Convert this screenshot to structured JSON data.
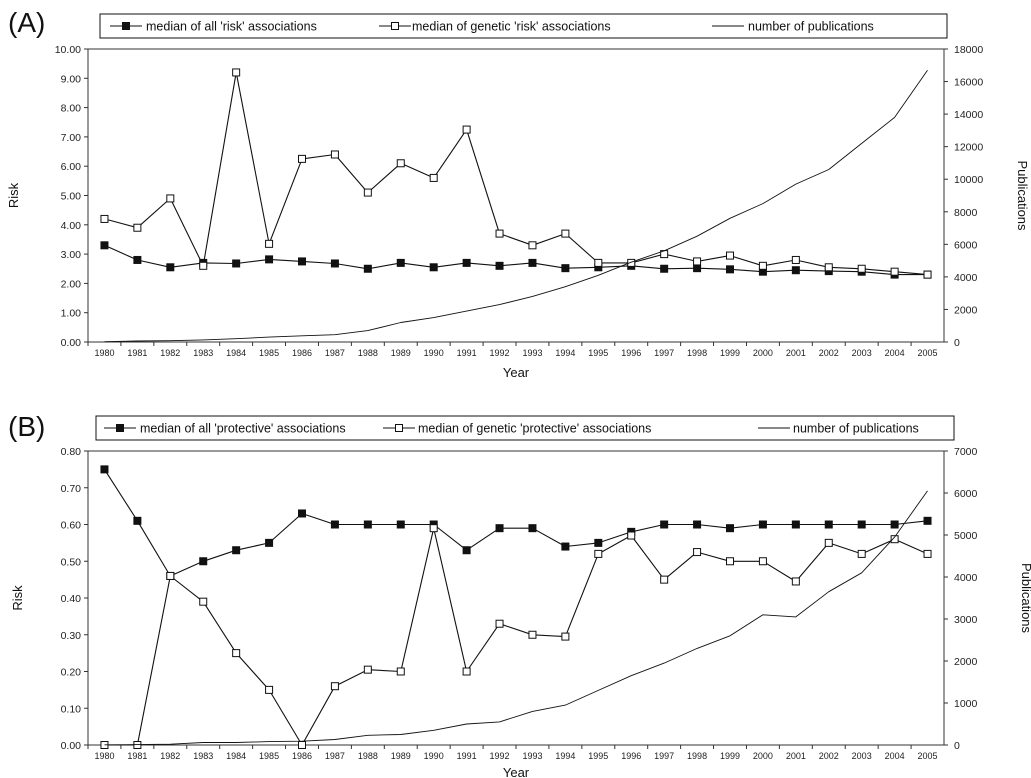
{
  "chart_data": [
    {
      "panel": "(A)",
      "type": "line",
      "xlabel": "Year",
      "ylabel": "Risk",
      "y2label": "Publications",
      "ylim": [
        0,
        10
      ],
      "y2lim": [
        0,
        18000
      ],
      "yticks": [
        "0.00",
        "1.00",
        "2.00",
        "3.00",
        "4.00",
        "5.00",
        "6.00",
        "7.00",
        "8.00",
        "9.00",
        "10.00"
      ],
      "y2ticks": [
        "0",
        "2000",
        "4000",
        "6000",
        "8000",
        "10000",
        "12000",
        "14000",
        "16000",
        "18000"
      ],
      "legend_position": "top",
      "x": [
        "1980",
        "1981",
        "1982",
        "1983",
        "1984",
        "1985",
        "1986",
        "1987",
        "1988",
        "1989",
        "1990",
        "1991",
        "1992",
        "1993",
        "1994",
        "1995",
        "1996",
        "1997",
        "1998",
        "1999",
        "2000",
        "2001",
        "2002",
        "2003",
        "2004",
        "2005"
      ],
      "series": [
        {
          "name": "median of all 'risk' associations",
          "marker": "filled-square",
          "axis": "left",
          "values": [
            3.3,
            2.8,
            2.55,
            2.7,
            2.68,
            2.82,
            2.75,
            2.68,
            2.5,
            2.7,
            2.55,
            2.7,
            2.6,
            2.7,
            2.52,
            2.55,
            2.6,
            2.5,
            2.52,
            2.48,
            2.4,
            2.45,
            2.42,
            2.4,
            2.3,
            2.3
          ]
        },
        {
          "name": "median of genetic 'risk' associations",
          "marker": "open-square",
          "axis": "left",
          "values": [
            4.2,
            3.9,
            4.9,
            2.6,
            9.2,
            3.35,
            6.25,
            6.4,
            5.1,
            6.1,
            5.6,
            7.25,
            3.7,
            3.3,
            3.7,
            2.7,
            2.7,
            3.0,
            2.75,
            2.95,
            2.6,
            2.8,
            2.55,
            2.5,
            2.4,
            2.3
          ]
        },
        {
          "name": "number of publications",
          "marker": "none",
          "axis": "right",
          "values": [
            20,
            60,
            80,
            130,
            200,
            300,
            380,
            450,
            700,
            1200,
            1500,
            1900,
            2300,
            2800,
            3400,
            4100,
            4900,
            5600,
            6500,
            7600,
            8500,
            9700,
            10600,
            12200,
            13800,
            16700
          ]
        }
      ]
    },
    {
      "panel": "(B)",
      "type": "line",
      "xlabel": "Year",
      "ylabel": "Risk",
      "y2label": "Publications",
      "ylim": [
        0,
        0.8
      ],
      "y2lim": [
        0,
        7000
      ],
      "yticks": [
        "0.00",
        "0.10",
        "0.20",
        "0.30",
        "0.40",
        "0.50",
        "0.60",
        "0.70",
        "0.80"
      ],
      "y2ticks": [
        "0",
        "1000",
        "2000",
        "3000",
        "4000",
        "5000",
        "6000",
        "7000"
      ],
      "legend_position": "top",
      "x": [
        "1980",
        "1981",
        "1982",
        "1983",
        "1984",
        "1985",
        "1986",
        "1987",
        "1988",
        "1989",
        "1990",
        "1991",
        "1992",
        "1993",
        "1994",
        "1995",
        "1996",
        "1997",
        "1998",
        "1999",
        "2000",
        "2001",
        "2002",
        "2003",
        "2004",
        "2005"
      ],
      "series": [
        {
          "name": "median of all 'protective' associations",
          "marker": "filled-square",
          "axis": "left",
          "values": [
            0.75,
            0.61,
            0.46,
            0.5,
            0.53,
            0.55,
            0.63,
            0.6,
            0.6,
            0.6,
            0.6,
            0.53,
            0.59,
            0.59,
            0.54,
            0.55,
            0.58,
            0.6,
            0.6,
            0.59,
            0.6,
            0.6,
            0.6,
            0.6,
            0.6,
            0.61
          ]
        },
        {
          "name": "median of genetic 'protective' associations",
          "marker": "open-square",
          "axis": "left",
          "values": [
            0.0,
            0.0,
            0.46,
            0.39,
            0.25,
            0.15,
            0.0,
            0.16,
            0.205,
            0.2,
            0.59,
            0.2,
            0.33,
            0.3,
            0.295,
            0.52,
            0.57,
            0.45,
            0.525,
            0.5,
            0.5,
            0.445,
            0.55,
            0.52,
            0.56,
            0.52
          ]
        },
        {
          "name": "number of publications",
          "marker": "none",
          "axis": "right",
          "values": [
            5,
            10,
            20,
            60,
            60,
            80,
            90,
            130,
            230,
            250,
            350,
            500,
            550,
            800,
            950,
            1300,
            1650,
            1950,
            2300,
            2600,
            3100,
            3050,
            3650,
            4100,
            4950,
            6050
          ]
        }
      ]
    }
  ],
  "colors": {
    "line": "#111111",
    "axis": "#333333",
    "background": "#ffffff"
  }
}
